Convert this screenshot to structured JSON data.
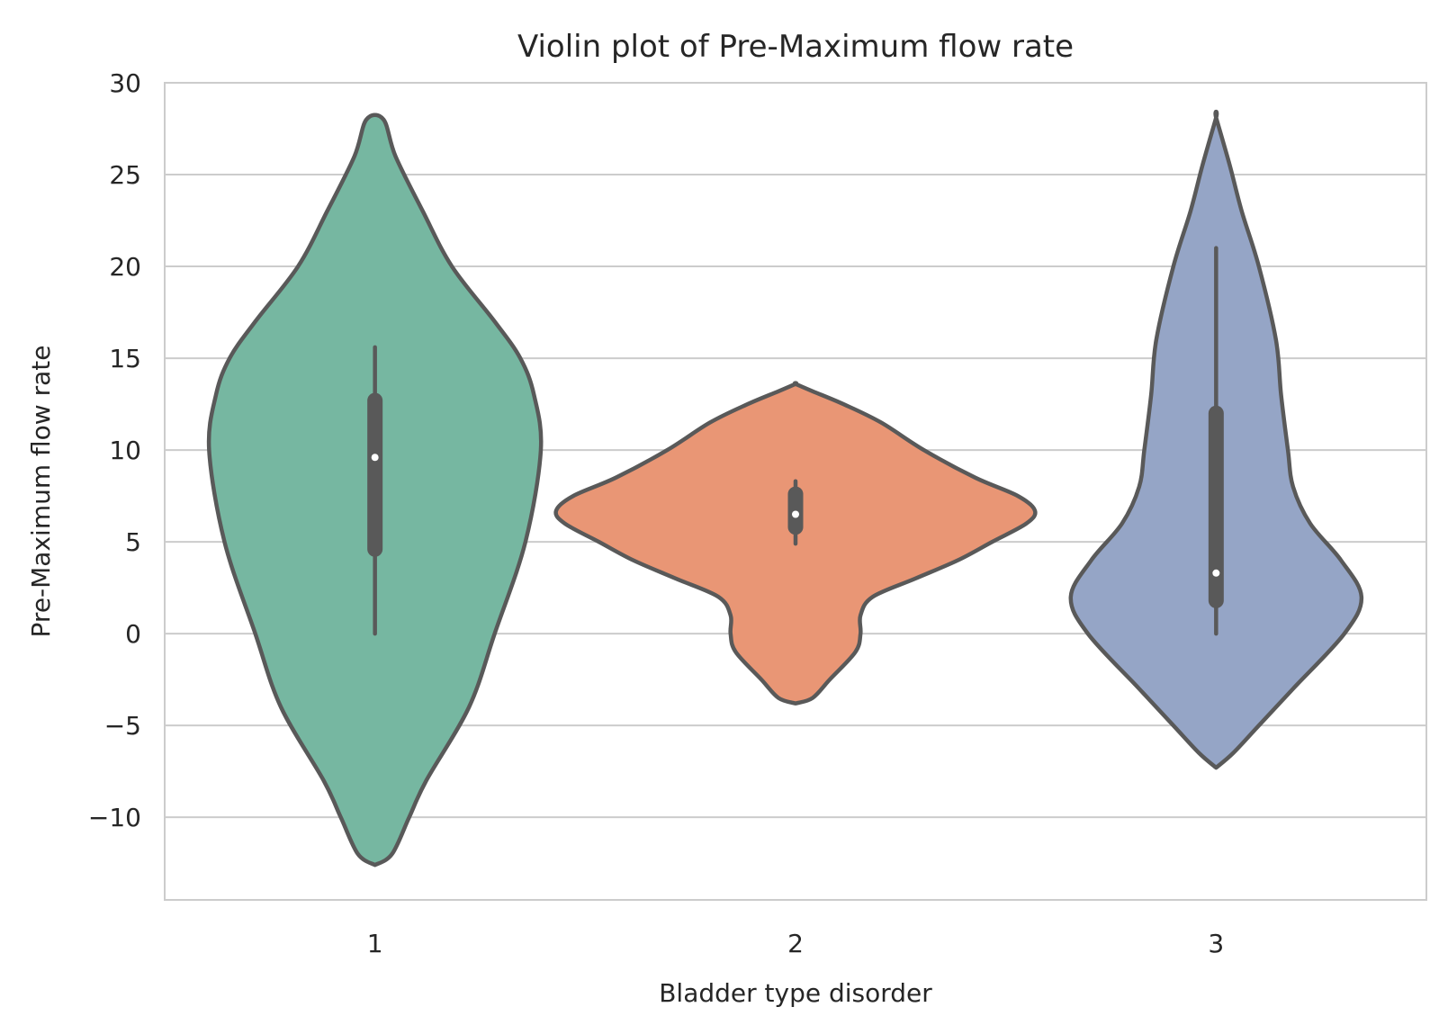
{
  "chart_data": {
    "type": "violin",
    "title": "Violin plot of Pre-Maximum flow rate",
    "xlabel": "Bladder type disorder",
    "ylabel": "Pre-Maximum flow rate",
    "ylim": [
      -14.5,
      30
    ],
    "yticks": [
      -10,
      -5,
      0,
      5,
      10,
      15,
      20,
      25,
      30
    ],
    "ytick_labels": [
      "−10",
      "−5",
      "0",
      "5",
      "10",
      "15",
      "20",
      "25",
      "30"
    ],
    "grid": "horizontal",
    "categories": [
      "1",
      "2",
      "3"
    ],
    "colors": [
      "#76b7a1",
      "#e99675",
      "#95a5c6"
    ],
    "outline_color": "#595959",
    "violins": [
      {
        "category": "1",
        "min": 0,
        "q1": 4.6,
        "median": 9.6,
        "q3": 12.7,
        "max": 15.6,
        "profile": [
          [
            -12.6,
            0.0
          ],
          [
            -12,
            0.1
          ],
          [
            -10,
            0.2
          ],
          [
            -8,
            0.3
          ],
          [
            -4,
            0.55
          ],
          [
            0,
            0.7
          ],
          [
            5,
            0.88
          ],
          [
            10,
            0.97
          ],
          [
            13,
            0.93
          ],
          [
            15,
            0.85
          ],
          [
            17,
            0.7
          ],
          [
            20,
            0.45
          ],
          [
            23,
            0.28
          ],
          [
            26,
            0.12
          ],
          [
            28,
            0.05
          ]
        ]
      },
      {
        "category": "2",
        "min": 4.9,
        "q1": 5.8,
        "median": 6.5,
        "q3": 7.6,
        "max": 8.3,
        "profile": [
          [
            -3.8,
            0.0
          ],
          [
            -3.5,
            0.1
          ],
          [
            -2.5,
            0.2
          ],
          [
            -1,
            0.35
          ],
          [
            0,
            0.38
          ],
          [
            1,
            0.38
          ],
          [
            2,
            0.45
          ],
          [
            3,
            0.7
          ],
          [
            4,
            0.95
          ],
          [
            5,
            1.15
          ],
          [
            6,
            1.35
          ],
          [
            6.7,
            1.4
          ],
          [
            7.5,
            1.3
          ],
          [
            8.5,
            1.05
          ],
          [
            10,
            0.75
          ],
          [
            11.5,
            0.5
          ],
          [
            12.5,
            0.28
          ],
          [
            13.2,
            0.1
          ],
          [
            13.6,
            0.0
          ]
        ]
      },
      {
        "category": "3",
        "min": 0,
        "q1": 1.8,
        "median": 3.3,
        "q3": 12.0,
        "max": 21.0,
        "profile": [
          [
            -7.3,
            0.0
          ],
          [
            -6.5,
            0.1
          ],
          [
            -5,
            0.25
          ],
          [
            -3,
            0.45
          ],
          [
            0,
            0.75
          ],
          [
            2,
            0.85
          ],
          [
            4,
            0.73
          ],
          [
            6,
            0.55
          ],
          [
            8,
            0.45
          ],
          [
            10,
            0.42
          ],
          [
            13,
            0.38
          ],
          [
            16,
            0.35
          ],
          [
            20,
            0.25
          ],
          [
            23,
            0.15
          ],
          [
            25.5,
            0.08
          ],
          [
            28.1,
            0.0
          ]
        ]
      }
    ]
  }
}
